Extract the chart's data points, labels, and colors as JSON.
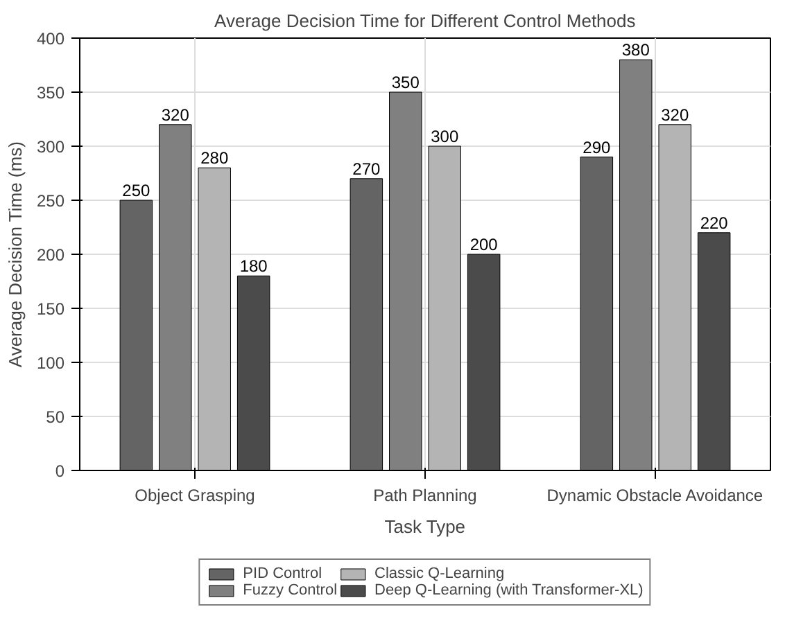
{
  "chart_data": {
    "type": "bar",
    "title": "Average Decision Time for Different Control Methods",
    "xlabel": "Task Type",
    "ylabel": "Average Decision Time (ms)",
    "categories": [
      "Object Grasping",
      "Path Planning",
      "Dynamic Obstacle Avoidance"
    ],
    "series": [
      {
        "name": "PID Control",
        "color": "#646464",
        "values": [
          250,
          270,
          290
        ]
      },
      {
        "name": "Fuzzy Control",
        "color": "#808080",
        "values": [
          320,
          350,
          380
        ]
      },
      {
        "name": "Classic Q-Learning",
        "color": "#b4b4b4",
        "values": [
          280,
          300,
          320
        ]
      },
      {
        "name": "Deep Q-Learning (with Transformer-XL)",
        "color": "#4b4b4b",
        "values": [
          180,
          200,
          220
        ]
      }
    ],
    "ylim": [
      0,
      400
    ],
    "yticks": [
      0,
      50,
      100,
      150,
      200,
      250,
      300,
      350,
      400
    ],
    "grid": true,
    "legend": "bottom",
    "data_labels": true
  }
}
